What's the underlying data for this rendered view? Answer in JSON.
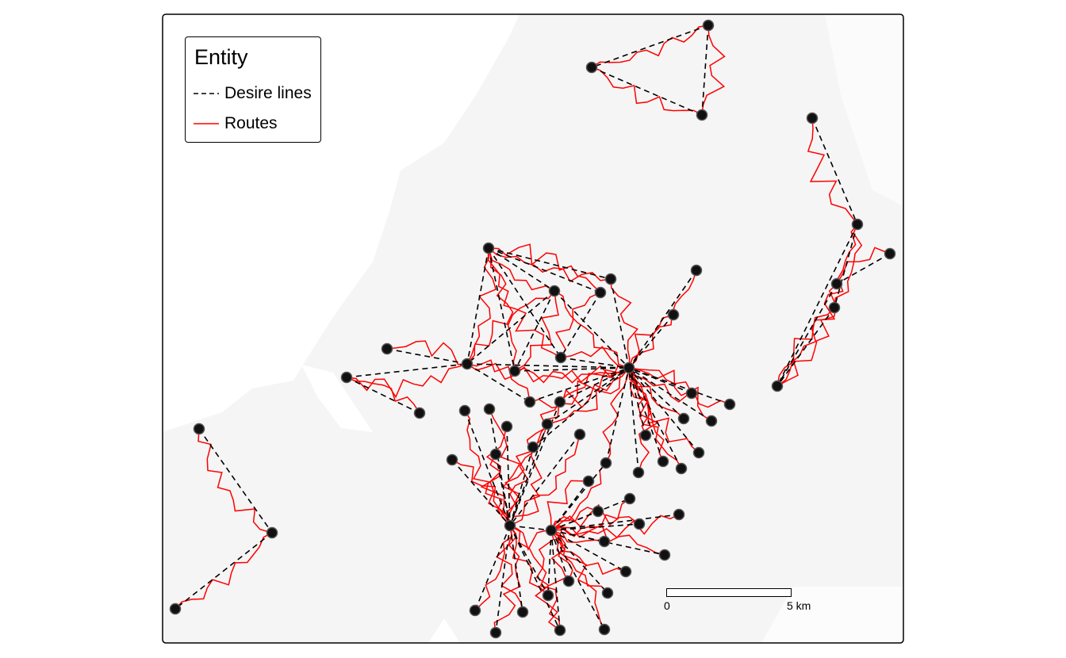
{
  "legend": {
    "title": "Entity",
    "items": [
      {
        "label": "Desire lines",
        "style": "dashed",
        "color": "#000000"
      },
      {
        "label": "Routes",
        "style": "solid",
        "color": "#ff0000"
      }
    ]
  },
  "scale_bar": {
    "start_label": "0",
    "end_label": "5 km"
  },
  "colors": {
    "land": "#f5f5f5",
    "water": "#ffffff",
    "route": "#ff0000",
    "desire": "#000000",
    "zone": "#111111"
  }
}
